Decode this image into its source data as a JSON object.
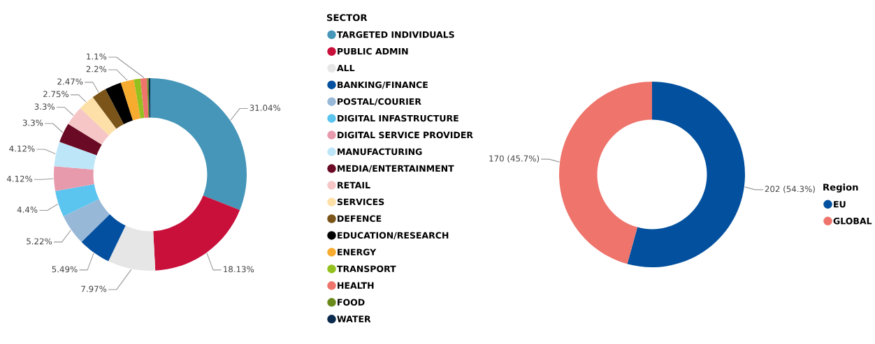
{
  "chart_data": [
    {
      "type": "donut",
      "legend_title": "SECTOR",
      "legend": "right",
      "categories": [
        "TARGETED INDIVIDUALS",
        "PUBLIC ADMIN",
        "ALL",
        "BANKING/FINANCE",
        "POSTAL/COURIER",
        "DIGITAL INFASTRUCTURE",
        "DIGITAL SERVICE PROVIDER",
        "MANUFACTURING",
        "MEDIA/ENTERTAINMENT",
        "RETAIL",
        "SERVICES",
        "DEFENCE",
        "EDUCATION/RESEARCH",
        "ENERGY",
        "TRANSPORT",
        "HEALTH",
        "FOOD",
        "WATER"
      ],
      "values": [
        31.04,
        18.13,
        7.97,
        5.49,
        5.22,
        4.4,
        4.12,
        4.12,
        3.3,
        3.3,
        2.75,
        2.47,
        2.75,
        2.2,
        1.1,
        1.1,
        0.27,
        0.27
      ],
      "value_labels": [
        "31.04%",
        "18.13%",
        "7.97%",
        "5.49%",
        "5.22%",
        "4.4%",
        "4.12%",
        "4.12%",
        "3.3%",
        "3.3%",
        "2.75%",
        "2.47%",
        null,
        "2.2%",
        null,
        "1.1%",
        null,
        null
      ],
      "colors": [
        "#4596b8",
        "#c8103a",
        "#e6e6e6",
        "#0450a0",
        "#98b8d8",
        "#5bc4ef",
        "#e89aad",
        "#bde6f8",
        "#6a0a24",
        "#f6c6c6",
        "#fddfa8",
        "#7a5418",
        "#000000",
        "#f7ab2f",
        "#94c11f",
        "#ee746c",
        "#6a8a1c",
        "#0b2a4e"
      ]
    },
    {
      "type": "donut",
      "legend_title": "Region",
      "legend": "right",
      "categories": [
        "EU",
        "GLOBAL"
      ],
      "values": [
        202,
        170
      ],
      "value_labels": [
        "202 (54.3%)",
        "170 (45.7%)"
      ],
      "colors": [
        "#02509e",
        "#ee746c"
      ]
    }
  ]
}
